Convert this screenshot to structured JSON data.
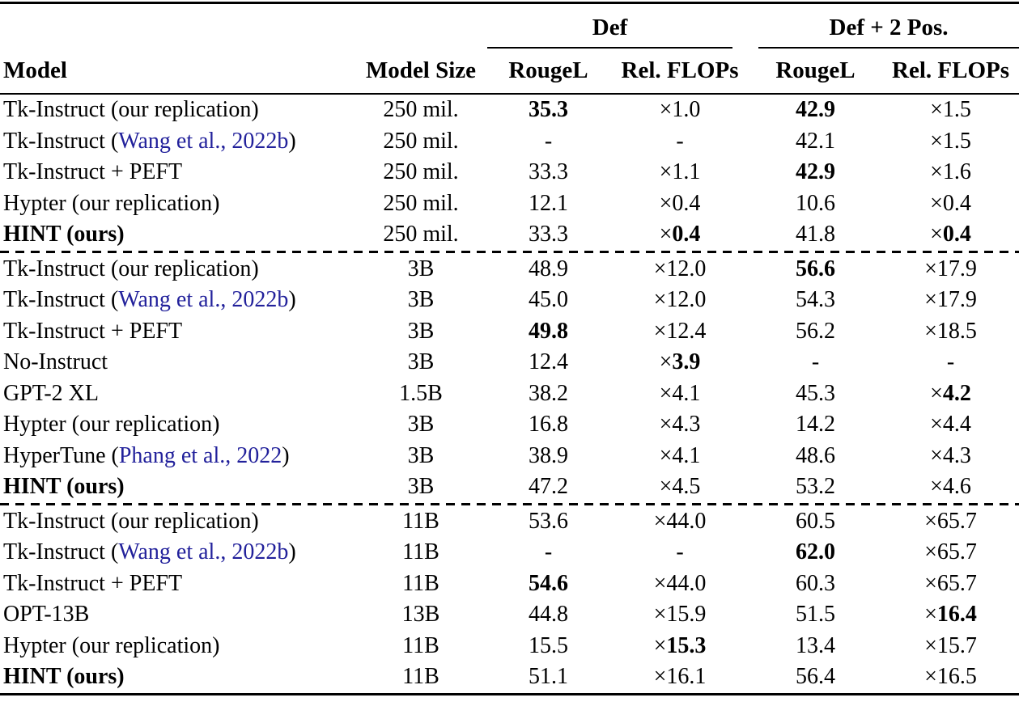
{
  "colors": {
    "citation": "#22219b",
    "text": "#000000",
    "background": "#ffffff"
  },
  "table": {
    "group_headers": [
      {
        "label": "Def"
      },
      {
        "label": "Def + 2 Pos."
      }
    ],
    "column_headers": [
      "Model",
      "Model Size",
      "RougeL",
      "Rel. FLOPs",
      "RougeL",
      "Rel. FLOPs"
    ],
    "sections": [
      {
        "rows": [
          {
            "model": [
              {
                "text": "Tk-Instruct (our replication)"
              }
            ],
            "size": "250 mil.",
            "cells": [
              {
                "text": "35.3",
                "bold": true
              },
              {
                "text": "1.0",
                "times": true
              },
              {
                "text": "42.9",
                "bold": true
              },
              {
                "text": "1.5",
                "times": true
              }
            ]
          },
          {
            "model": [
              {
                "text": "Tk-Instruct ("
              },
              {
                "text": "Wang et al., 2022b",
                "cite": true
              },
              {
                "text": ")"
              }
            ],
            "size": "250 mil.",
            "cells": [
              {
                "text": "-"
              },
              {
                "text": "-"
              },
              {
                "text": "42.1"
              },
              {
                "text": "1.5",
                "times": true
              }
            ]
          },
          {
            "model": [
              {
                "text": "Tk-Instruct + PEFT"
              }
            ],
            "size": "250 mil.",
            "cells": [
              {
                "text": "33.3"
              },
              {
                "text": "1.1",
                "times": true
              },
              {
                "text": "42.9",
                "bold": true
              },
              {
                "text": "1.6",
                "times": true
              }
            ]
          },
          {
            "model": [
              {
                "text": "Hypter (our replication)"
              }
            ],
            "size": "250 mil.",
            "cells": [
              {
                "text": "12.1"
              },
              {
                "text": "0.4",
                "times": true
              },
              {
                "text": "10.6"
              },
              {
                "text": "0.4",
                "times": true
              }
            ]
          },
          {
            "model": [
              {
                "text": "HINT (ours)",
                "bold": true
              }
            ],
            "size": "250 mil.",
            "cells": [
              {
                "text": "33.3"
              },
              {
                "text": "0.4",
                "times": true,
                "bold": true
              },
              {
                "text": "41.8"
              },
              {
                "text": "0.4",
                "times": true,
                "bold": true
              }
            ]
          }
        ]
      },
      {
        "rows": [
          {
            "model": [
              {
                "text": "Tk-Instruct (our replication)"
              }
            ],
            "size": "3B",
            "cells": [
              {
                "text": "48.9"
              },
              {
                "text": "12.0",
                "times": true
              },
              {
                "text": "56.6",
                "bold": true
              },
              {
                "text": "17.9",
                "times": true
              }
            ]
          },
          {
            "model": [
              {
                "text": "Tk-Instruct ("
              },
              {
                "text": "Wang et al., 2022b",
                "cite": true
              },
              {
                "text": ")"
              }
            ],
            "size": "3B",
            "cells": [
              {
                "text": "45.0"
              },
              {
                "text": "12.0",
                "times": true
              },
              {
                "text": "54.3"
              },
              {
                "text": "17.9",
                "times": true
              }
            ]
          },
          {
            "model": [
              {
                "text": "Tk-Instruct + PEFT"
              }
            ],
            "size": "3B",
            "cells": [
              {
                "text": "49.8",
                "bold": true
              },
              {
                "text": "12.4",
                "times": true
              },
              {
                "text": "56.2"
              },
              {
                "text": "18.5",
                "times": true
              }
            ]
          },
          {
            "model": [
              {
                "text": "No-Instruct"
              }
            ],
            "size": "3B",
            "cells": [
              {
                "text": "12.4"
              },
              {
                "text": "3.9",
                "times": true,
                "bold": true
              },
              {
                "text": "-"
              },
              {
                "text": "-"
              }
            ]
          },
          {
            "model": [
              {
                "text": "GPT-2 XL"
              }
            ],
            "size": "1.5B",
            "cells": [
              {
                "text": "38.2"
              },
              {
                "text": "4.1",
                "times": true
              },
              {
                "text": "45.3"
              },
              {
                "text": "4.2",
                "times": true,
                "bold": true
              }
            ]
          },
          {
            "model": [
              {
                "text": "Hypter (our replication)"
              }
            ],
            "size": "3B",
            "cells": [
              {
                "text": "16.8"
              },
              {
                "text": "4.3",
                "times": true
              },
              {
                "text": "14.2"
              },
              {
                "text": "4.4",
                "times": true
              }
            ]
          },
          {
            "model": [
              {
                "text": "HyperTune ("
              },
              {
                "text": "Phang et al., 2022",
                "cite": true
              },
              {
                "text": ")"
              }
            ],
            "size": "3B",
            "cells": [
              {
                "text": "38.9"
              },
              {
                "text": "4.1",
                "times": true
              },
              {
                "text": "48.6"
              },
              {
                "text": "4.3",
                "times": true
              }
            ]
          },
          {
            "model": [
              {
                "text": "HINT (ours)",
                "bold": true
              }
            ],
            "size": "3B",
            "cells": [
              {
                "text": "47.2"
              },
              {
                "text": "4.5",
                "times": true
              },
              {
                "text": "53.2"
              },
              {
                "text": "4.6",
                "times": true
              }
            ]
          }
        ]
      },
      {
        "rows": [
          {
            "model": [
              {
                "text": "Tk-Instruct (our replication)"
              }
            ],
            "size": "11B",
            "cells": [
              {
                "text": "53.6"
              },
              {
                "text": "44.0",
                "times": true
              },
              {
                "text": "60.5"
              },
              {
                "text": "65.7",
                "times": true
              }
            ]
          },
          {
            "model": [
              {
                "text": "Tk-Instruct ("
              },
              {
                "text": "Wang et al., 2022b",
                "cite": true
              },
              {
                "text": ")"
              }
            ],
            "size": "11B",
            "cells": [
              {
                "text": "-"
              },
              {
                "text": "-"
              },
              {
                "text": "62.0",
                "bold": true
              },
              {
                "text": "65.7",
                "times": true
              }
            ]
          },
          {
            "model": [
              {
                "text": "Tk-Instruct + PEFT"
              }
            ],
            "size": "11B",
            "cells": [
              {
                "text": "54.6",
                "bold": true
              },
              {
                "text": "44.0",
                "times": true
              },
              {
                "text": "60.3"
              },
              {
                "text": "65.7",
                "times": true
              }
            ]
          },
          {
            "model": [
              {
                "text": "OPT-13B"
              }
            ],
            "size": "13B",
            "cells": [
              {
                "text": "44.8"
              },
              {
                "text": "15.9",
                "times": true
              },
              {
                "text": "51.5"
              },
              {
                "text": "16.4",
                "times": true,
                "bold": true
              }
            ]
          },
          {
            "model": [
              {
                "text": "Hypter (our replication)"
              }
            ],
            "size": "11B",
            "cells": [
              {
                "text": "15.5"
              },
              {
                "text": "15.3",
                "times": true,
                "bold": true
              },
              {
                "text": "13.4"
              },
              {
                "text": "15.7",
                "times": true
              }
            ]
          },
          {
            "model": [
              {
                "text": "HINT (ours)",
                "bold": true
              }
            ],
            "size": "11B",
            "cells": [
              {
                "text": "51.1"
              },
              {
                "text": "16.1",
                "times": true
              },
              {
                "text": "56.4"
              },
              {
                "text": "16.5",
                "times": true
              }
            ]
          }
        ]
      }
    ]
  }
}
